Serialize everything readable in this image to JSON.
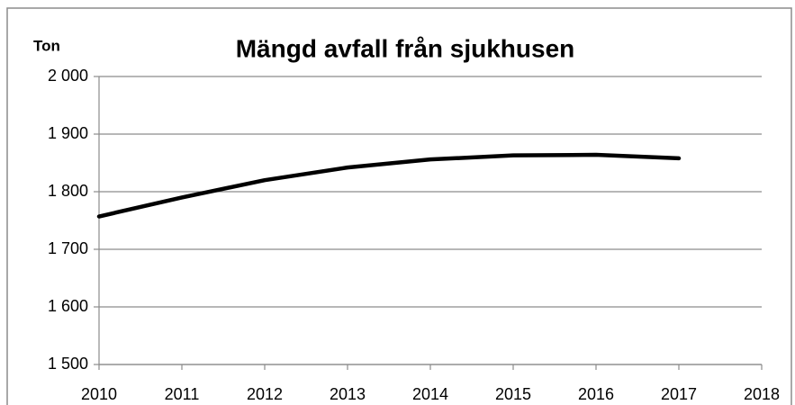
{
  "chart_data": {
    "type": "line",
    "title": "Mängd avfall från sjukhusen",
    "y_label": "Ton",
    "x": [
      2010,
      2011,
      2012,
      2013,
      2014,
      2015,
      2016,
      2017
    ],
    "series": [
      {
        "name": "Mängd avfall",
        "color": "#000000",
        "values": [
          1757,
          1790,
          1820,
          1842,
          1856,
          1863,
          1864,
          1858
        ]
      }
    ],
    "xlim": [
      2010,
      2018
    ],
    "xticks": [
      2010,
      2011,
      2012,
      2013,
      2014,
      2015,
      2016,
      2017,
      2018
    ],
    "ylim": [
      1500,
      2000
    ],
    "yticks": [
      {
        "value": 1500,
        "label": "1 500"
      },
      {
        "value": 1600,
        "label": "1 600"
      },
      {
        "value": 1700,
        "label": "1 700"
      },
      {
        "value": 1800,
        "label": "1 800"
      },
      {
        "value": 1900,
        "label": "1 900"
      },
      {
        "value": 2000,
        "label": "2 000"
      }
    ],
    "grid": true
  }
}
